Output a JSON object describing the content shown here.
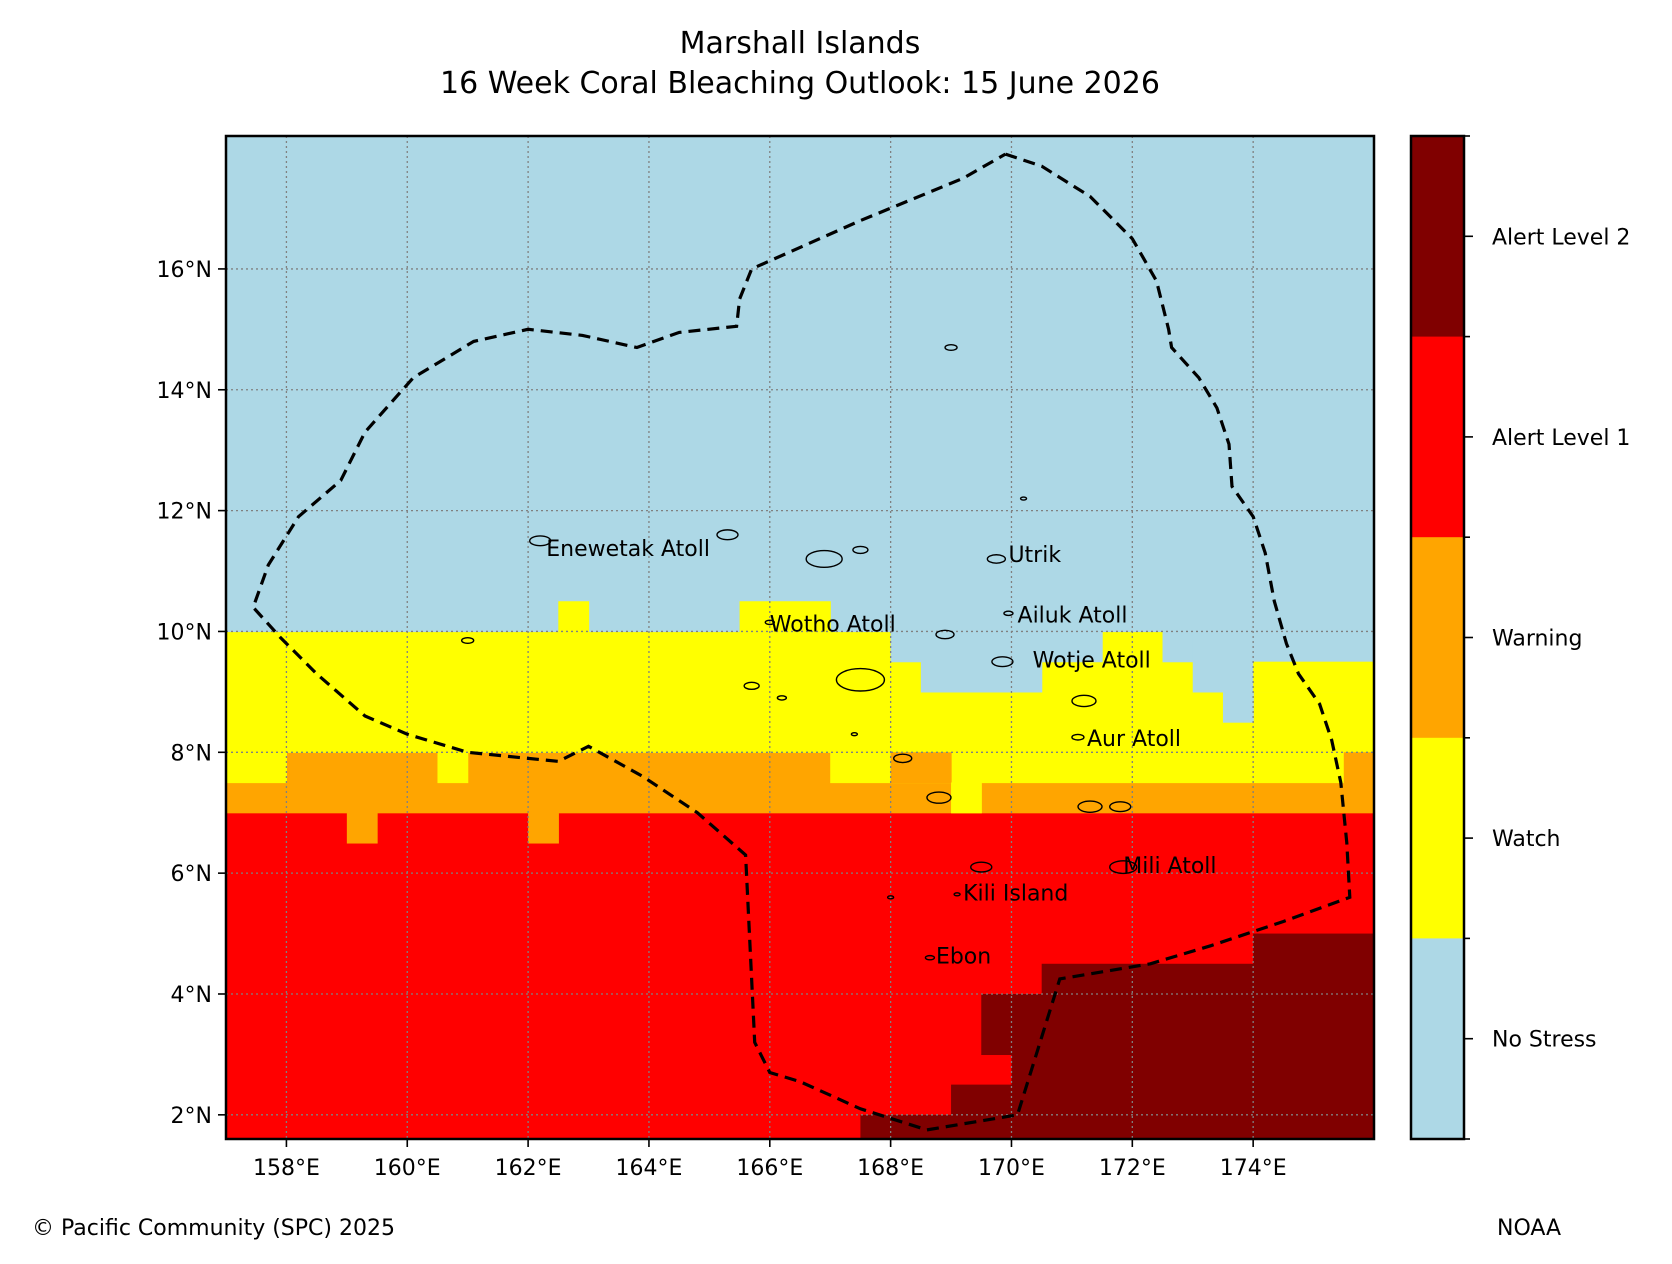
{
  "title": {
    "line1": "Marshall Islands",
    "line2": "16 Week Coral Bleaching Outlook: 15 June 2026"
  },
  "map": {
    "lon_range": [
      157.0,
      176.0
    ],
    "lat_range": [
      1.6,
      18.2
    ],
    "lon_ticks": [
      {
        "value": 158,
        "label": "158°E"
      },
      {
        "value": 160,
        "label": "160°E"
      },
      {
        "value": 162,
        "label": "162°E"
      },
      {
        "value": 164,
        "label": "164°E"
      },
      {
        "value": 166,
        "label": "166°E"
      },
      {
        "value": 168,
        "label": "168°E"
      },
      {
        "value": 170,
        "label": "170°E"
      },
      {
        "value": 172,
        "label": "172°E"
      },
      {
        "value": 174,
        "label": "174°E"
      }
    ],
    "lat_ticks": [
      {
        "value": 2,
        "label": "2°N"
      },
      {
        "value": 4,
        "label": "4°N"
      },
      {
        "value": 6,
        "label": "6°N"
      },
      {
        "value": 8,
        "label": "8°N"
      },
      {
        "value": 10,
        "label": "10°N"
      },
      {
        "value": 12,
        "label": "12°N"
      },
      {
        "value": 14,
        "label": "14°N"
      },
      {
        "value": 16,
        "label": "16°N"
      }
    ],
    "gridlines": true,
    "places": [
      {
        "name": "Enewetak Atoll",
        "lon": 162.3,
        "lat": 11.35
      },
      {
        "name": "Utrik",
        "lon": 169.95,
        "lat": 11.25
      },
      {
        "name": "Wotho Atoll",
        "lon": 166.0,
        "lat": 10.1
      },
      {
        "name": "Ailuk Atoll",
        "lon": 170.1,
        "lat": 10.25
      },
      {
        "name": "Wotje Atoll",
        "lon": 170.35,
        "lat": 9.5
      },
      {
        "name": "Aur Atoll",
        "lon": 171.25,
        "lat": 8.2
      },
      {
        "name": "Mili Atoll",
        "lon": 171.85,
        "lat": 6.1
      },
      {
        "name": "Kili Island",
        "lon": 169.2,
        "lat": 5.65
      },
      {
        "name": "Ebon",
        "lon": 168.75,
        "lat": 4.6
      }
    ],
    "eez_boundary": [
      [
        169.9,
        17.9
      ],
      [
        170.5,
        17.7
      ],
      [
        171.3,
        17.2
      ],
      [
        172.0,
        16.5
      ],
      [
        172.4,
        15.8
      ],
      [
        172.6,
        15.0
      ],
      [
        172.65,
        14.7
      ],
      [
        173.1,
        14.2
      ],
      [
        173.4,
        13.7
      ],
      [
        173.6,
        13.1
      ],
      [
        173.65,
        12.4
      ],
      [
        174.0,
        11.9
      ],
      [
        174.2,
        11.3
      ],
      [
        174.35,
        10.5
      ],
      [
        174.55,
        9.8
      ],
      [
        174.75,
        9.3
      ],
      [
        175.1,
        8.8
      ],
      [
        175.3,
        8.2
      ],
      [
        175.45,
        7.5
      ],
      [
        175.55,
        6.5
      ],
      [
        175.6,
        5.6
      ],
      [
        174.5,
        5.2
      ],
      [
        173.3,
        4.8
      ],
      [
        172.3,
        4.5
      ],
      [
        170.8,
        4.25
      ],
      [
        170.1,
        2.0
      ],
      [
        168.6,
        1.75
      ],
      [
        167.5,
        2.1
      ],
      [
        166.5,
        2.55
      ],
      [
        166.0,
        2.7
      ],
      [
        165.75,
        3.2
      ],
      [
        165.6,
        6.3
      ],
      [
        164.8,
        7.0
      ],
      [
        163.9,
        7.6
      ],
      [
        163.0,
        8.1
      ],
      [
        162.5,
        7.85
      ],
      [
        161.0,
        8.0
      ],
      [
        160.0,
        8.3
      ],
      [
        159.3,
        8.6
      ],
      [
        158.5,
        9.3
      ],
      [
        157.9,
        9.9
      ],
      [
        157.45,
        10.4
      ],
      [
        157.7,
        11.1
      ],
      [
        158.2,
        11.9
      ],
      [
        158.9,
        12.5
      ],
      [
        159.3,
        13.3
      ],
      [
        160.1,
        14.2
      ],
      [
        161.1,
        14.8
      ],
      [
        162.0,
        15.0
      ],
      [
        162.9,
        14.9
      ],
      [
        163.8,
        14.7
      ],
      [
        164.5,
        14.95
      ],
      [
        165.45,
        15.05
      ],
      [
        165.5,
        15.5
      ],
      [
        165.7,
        16.0
      ],
      [
        167.5,
        16.8
      ],
      [
        169.2,
        17.5
      ],
      [
        169.9,
        17.9
      ]
    ],
    "islands": [
      [
        162.2,
        11.5,
        0.35
      ],
      [
        165.3,
        11.6,
        0.35
      ],
      [
        166.9,
        11.2,
        0.6
      ],
      [
        167.5,
        11.35,
        0.25
      ],
      [
        169.75,
        11.2,
        0.3
      ],
      [
        169.0,
        14.7,
        0.2
      ],
      [
        170.2,
        12.2,
        0.1
      ],
      [
        166.0,
        10.15,
        0.15
      ],
      [
        169.95,
        10.3,
        0.15
      ],
      [
        168.9,
        9.95,
        0.3
      ],
      [
        169.85,
        9.5,
        0.35
      ],
      [
        161.0,
        9.85,
        0.2
      ],
      [
        165.7,
        9.1,
        0.25
      ],
      [
        166.2,
        8.9,
        0.15
      ],
      [
        167.5,
        9.2,
        0.8
      ],
      [
        171.2,
        8.85,
        0.4
      ],
      [
        171.1,
        8.25,
        0.2
      ],
      [
        168.2,
        7.9,
        0.3
      ],
      [
        168.8,
        7.25,
        0.4
      ],
      [
        171.3,
        7.1,
        0.4
      ],
      [
        171.8,
        7.1,
        0.35
      ],
      [
        169.5,
        6.1,
        0.35
      ],
      [
        171.85,
        6.1,
        0.45
      ],
      [
        169.1,
        5.65,
        0.1
      ],
      [
        168.0,
        5.6,
        0.1
      ],
      [
        168.65,
        4.6,
        0.15
      ],
      [
        167.4,
        8.3,
        0.1
      ]
    ]
  },
  "chart_data": {
    "type": "heatmap",
    "title": "Marshall Islands 16 Week Coral Bleaching Outlook: 15 June 2026",
    "cell_size_deg": 0.5,
    "categories": [
      "No Stress",
      "Watch",
      "Warning",
      "Alert Level 1",
      "Alert Level 2"
    ],
    "colors": {
      "No Stress": "#add8e6",
      "Watch": "#ffff00",
      "Warning": "#ffa500",
      "Alert Level 1": "#ff0000",
      "Alert Level 2": "#800000"
    },
    "regions": [
      {
        "category": "Alert Level 1",
        "lon": [
          157.0,
          176.0
        ],
        "lat": [
          1.6,
          7.0
        ]
      },
      {
        "category": "Warning",
        "lon": [
          157.0,
          176.0
        ],
        "lat": [
          7.0,
          8.0
        ]
      },
      {
        "category": "Watch",
        "lon": [
          157.0,
          176.0
        ],
        "lat": [
          8.0,
          10.0
        ]
      },
      {
        "category": "No Stress",
        "lon": [
          157.0,
          176.0
        ],
        "lat": [
          10.0,
          18.2
        ]
      },
      {
        "category": "Watch",
        "lon": [
          157.0,
          158.0
        ],
        "lat": [
          7.5,
          8.0
        ]
      },
      {
        "category": "Watch",
        "lon": [
          160.5,
          161.0
        ],
        "lat": [
          7.5,
          8.0
        ]
      },
      {
        "category": "Watch",
        "lon": [
          167.0,
          175.5
        ],
        "lat": [
          7.5,
          8.0
        ]
      },
      {
        "category": "Warning",
        "lon": [
          168.0,
          169.0
        ],
        "lat": [
          7.5,
          8.0
        ]
      },
      {
        "category": "Watch",
        "lon": [
          169.0,
          169.5
        ],
        "lat": [
          7.0,
          7.5
        ]
      },
      {
        "category": "Warning",
        "lon": [
          175.5,
          176.0
        ],
        "lat": [
          7.5,
          8.0
        ]
      },
      {
        "category": "Warning",
        "lon": [
          159.0,
          159.5
        ],
        "lat": [
          6.5,
          7.0
        ]
      },
      {
        "category": "Warning",
        "lon": [
          162.0,
          162.5
        ],
        "lat": [
          6.5,
          7.0
        ]
      },
      {
        "category": "Watch",
        "lon": [
          162.5,
          163.0
        ],
        "lat": [
          10.0,
          10.5
        ]
      },
      {
        "category": "Watch",
        "lon": [
          165.5,
          167.0
        ],
        "lat": [
          10.0,
          10.5
        ]
      },
      {
        "category": "No Stress",
        "lon": [
          168.0,
          168.5
        ],
        "lat": [
          9.5,
          10.0
        ]
      },
      {
        "category": "No Stress",
        "lon": [
          168.5,
          170.5
        ],
        "lat": [
          9.0,
          10.0
        ]
      },
      {
        "category": "No Stress",
        "lon": [
          170.5,
          171.5
        ],
        "lat": [
          9.5,
          10.0
        ]
      },
      {
        "category": "No Stress",
        "lon": [
          172.5,
          173.0
        ],
        "lat": [
          9.5,
          10.0
        ]
      },
      {
        "category": "No Stress",
        "lon": [
          173.0,
          176.0
        ],
        "lat": [
          9.0,
          10.0
        ]
      },
      {
        "category": "Watch",
        "lon": [
          174.0,
          176.0
        ],
        "lat": [
          9.0,
          9.5
        ]
      },
      {
        "category": "No Stress",
        "lon": [
          173.5,
          174.0
        ],
        "lat": [
          8.5,
          9.0
        ]
      },
      {
        "category": "Alert Level 2",
        "lon": [
          174.0,
          176.0
        ],
        "lat": [
          1.6,
          5.0
        ]
      },
      {
        "category": "Alert Level 2",
        "lon": [
          170.5,
          174.0
        ],
        "lat": [
          1.6,
          4.5
        ]
      },
      {
        "category": "Alert Level 2",
        "lon": [
          169.5,
          170.5
        ],
        "lat": [
          3.0,
          4.0
        ]
      },
      {
        "category": "Alert Level 2",
        "lon": [
          170.0,
          170.5
        ],
        "lat": [
          1.6,
          3.0
        ]
      },
      {
        "category": "Alert Level 2",
        "lon": [
          169.0,
          170.0
        ],
        "lat": [
          1.6,
          2.5
        ]
      },
      {
        "category": "Alert Level 2",
        "lon": [
          167.5,
          169.0
        ],
        "lat": [
          1.6,
          2.0
        ]
      }
    ]
  },
  "colorbar": {
    "labels": [
      "Alert Level 2",
      "Alert Level 1",
      "Warning",
      "Watch",
      "No Stress"
    ],
    "colors": [
      "#800000",
      "#ff0000",
      "#ffa500",
      "#ffff00",
      "#add8e6"
    ]
  },
  "credits": {
    "left": "© Pacific Community (SPC) 2025",
    "right": "NOAA"
  }
}
